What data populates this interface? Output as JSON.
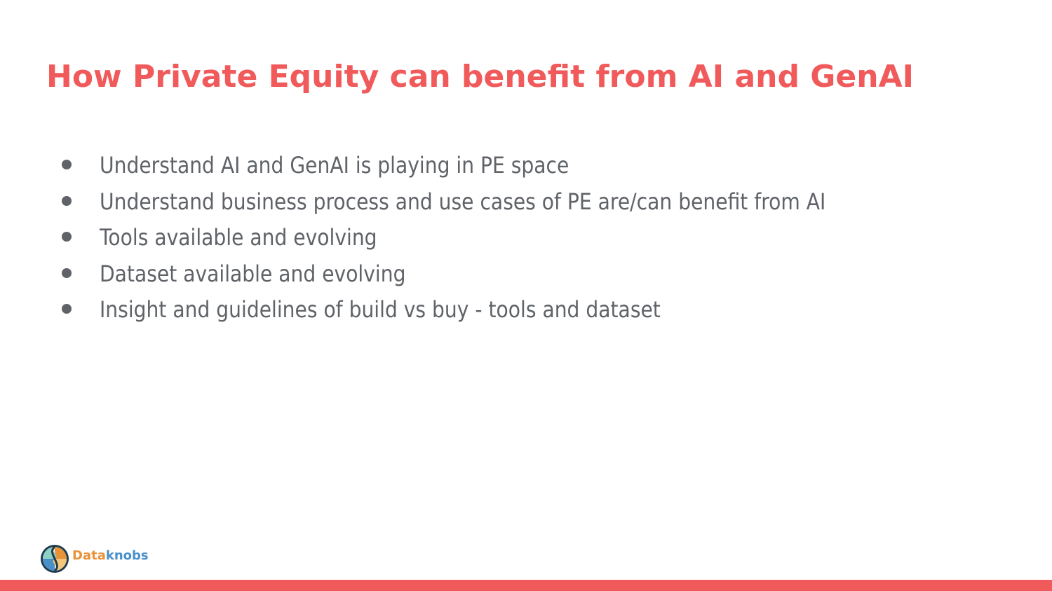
{
  "slide": {
    "title": "How Private Equity can benefit from AI and GenAI",
    "bullets": [
      "Understand AI and GenAI is playing in PE space",
      "Understand business process and use cases of PE are/can benefit from AI",
      "Tools available and evolving",
      "Dataset available and evolving",
      "Insight and guidelines of build vs buy - tools and dataset"
    ]
  },
  "logo": {
    "name_part_1": "Data",
    "name_part_2": "knobs",
    "icon": "dataknobs-logo-icon"
  },
  "colors": {
    "accent": "#f05a5b",
    "body_text": "#5f6368",
    "logo_orange": "#e8923a",
    "logo_blue": "#4a90c8",
    "logo_dark": "#1f3b4d"
  }
}
